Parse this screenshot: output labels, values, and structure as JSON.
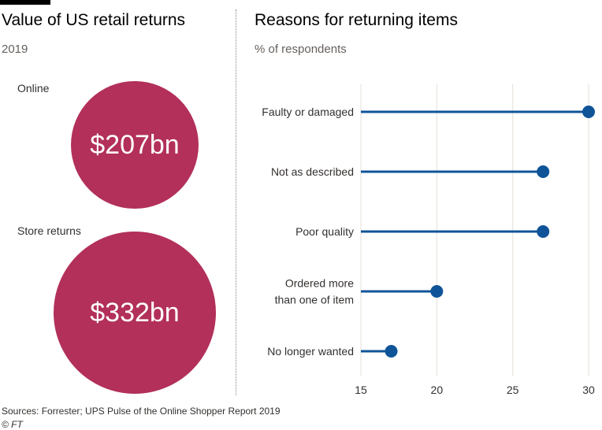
{
  "left_panel": {
    "title": "Value of US retail returns",
    "subtitle": "2019",
    "bubbles": [
      {
        "label": "Online",
        "value_text": "$207bn",
        "value": 207
      },
      {
        "label": "Store returns",
        "value_text": "$332bn",
        "value": 332
      }
    ],
    "bubble_color": "#b2305a"
  },
  "right_panel": {
    "title": "Reasons for returning items",
    "subtitle": "% of respondents"
  },
  "chart_data": {
    "type": "bar",
    "style": "lollipop",
    "categories": [
      [
        "Faulty or damaged"
      ],
      [
        "Not as described"
      ],
      [
        "Poor quality"
      ],
      [
        "Ordered more",
        "than one of item"
      ],
      [
        "No longer wanted"
      ]
    ],
    "values": [
      30,
      27,
      27,
      20,
      17
    ],
    "xlim": [
      15,
      30
    ],
    "xticks": [
      15,
      20,
      25,
      30
    ],
    "grid": true,
    "color": "#0f5499"
  },
  "footer": {
    "source": "Sources: Forrester; UPS Pulse of the Online Shopper Report 2019",
    "credit": "© FT"
  }
}
